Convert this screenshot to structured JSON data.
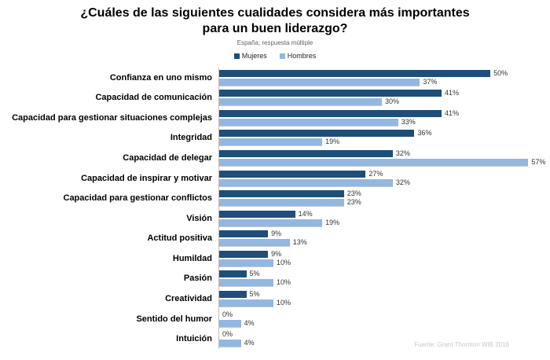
{
  "title_lines": [
    "¿Cuáles de las siguientes cualidades considera más importantes",
    "para un buen liderazgo?"
  ],
  "subtitle": "España; respuesta múltiple",
  "legend": [
    {
      "label": "Mujeres",
      "color": "#1F4E79"
    },
    {
      "label": "Hombres",
      "color": "#94B7E0"
    }
  ],
  "footer": "Fuente: Grant Thornton  WIB 2016",
  "chart_data": {
    "type": "bar",
    "orientation": "horizontal",
    "title": "¿Cuáles de las siguientes cualidades considera más importantes para un buen liderazgo?",
    "subtitle": "España; respuesta múltiple",
    "categories": [
      "Confianza en uno mismo",
      "Capacidad de comunicación",
      "Capacidad para gestionar situaciones complejas",
      "Integridad",
      "Capacidad de delegar",
      "Capacidad de inspirar y motivar",
      "Capacidad para gestionar conflictos",
      "Visión",
      "Actitud positiva",
      "Humildad",
      "Pasión",
      "Creatividad",
      "Sentido del humor",
      "Intuición"
    ],
    "series": [
      {
        "name": "Mujeres",
        "color": "#1F4E79",
        "values": [
          50,
          41,
          41,
          36,
          32,
          27,
          23,
          14,
          9,
          9,
          5,
          5,
          0,
          0
        ]
      },
      {
        "name": "Hombres",
        "color": "#94B7E0",
        "values": [
          37,
          30,
          33,
          19,
          57,
          32,
          23,
          19,
          13,
          10,
          10,
          10,
          4,
          4
        ]
      }
    ],
    "value_suffix": "%",
    "xlim": [
      0,
      61
    ],
    "grid": false,
    "legend_position": "top",
    "source": "Fuente: Grant Thornton  WIB 2016"
  }
}
